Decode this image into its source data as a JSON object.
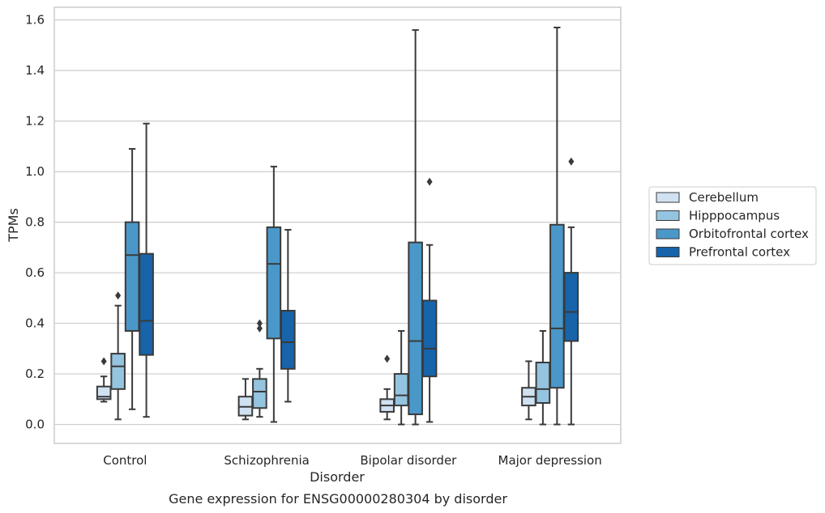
{
  "chart_data": {
    "type": "box",
    "caption": "Gene expression for ENSG00000280304 by disorder",
    "xlabel": "Disorder",
    "ylabel": "TPMs",
    "ylim": [
      -0.075,
      1.65
    ],
    "yticks": [
      "0.0",
      "0.2",
      "0.4",
      "0.6",
      "0.8",
      "1.0",
      "1.2",
      "1.4",
      "1.6"
    ],
    "grid": "horizontal",
    "legend_position": "right",
    "categories": [
      "Control",
      "Schizophrenia",
      "Bipolar disorder",
      "Major depression"
    ],
    "series": [
      {
        "name": "Cerebellum",
        "color": "#d0e1f2",
        "boxes": [
          {
            "whisker_low": 0.09,
            "q1": 0.1,
            "median": 0.11,
            "q3": 0.15,
            "whisker_high": 0.19,
            "outliers": [
              0.25
            ]
          },
          {
            "whisker_low": 0.02,
            "q1": 0.035,
            "median": 0.07,
            "q3": 0.11,
            "whisker_high": 0.18,
            "outliers": []
          },
          {
            "whisker_low": 0.02,
            "q1": 0.05,
            "median": 0.075,
            "q3": 0.1,
            "whisker_high": 0.14,
            "outliers": [
              0.26
            ]
          },
          {
            "whisker_low": 0.02,
            "q1": 0.075,
            "median": 0.11,
            "q3": 0.145,
            "whisker_high": 0.25,
            "outliers": []
          }
        ]
      },
      {
        "name": "Hipppocampus",
        "color": "#94c4df",
        "boxes": [
          {
            "whisker_low": 0.02,
            "q1": 0.14,
            "median": 0.23,
            "q3": 0.28,
            "whisker_high": 0.47,
            "outliers": [
              0.51
            ]
          },
          {
            "whisker_low": 0.03,
            "q1": 0.065,
            "median": 0.13,
            "q3": 0.18,
            "whisker_high": 0.22,
            "outliers": [
              0.38,
              0.4
            ]
          },
          {
            "whisker_low": 0.0,
            "q1": 0.075,
            "median": 0.115,
            "q3": 0.2,
            "whisker_high": 0.37,
            "outliers": []
          },
          {
            "whisker_low": 0.0,
            "q1": 0.085,
            "median": 0.14,
            "q3": 0.245,
            "whisker_high": 0.37,
            "outliers": []
          }
        ]
      },
      {
        "name": "Orbitofrontal cortex",
        "color": "#4a98c9",
        "boxes": [
          {
            "whisker_low": 0.06,
            "q1": 0.37,
            "median": 0.67,
            "q3": 0.8,
            "whisker_high": 1.09,
            "outliers": []
          },
          {
            "whisker_low": 0.01,
            "q1": 0.34,
            "median": 0.635,
            "q3": 0.78,
            "whisker_high": 1.02,
            "outliers": []
          },
          {
            "whisker_low": 0.0,
            "q1": 0.04,
            "median": 0.33,
            "q3": 0.72,
            "whisker_high": 1.56,
            "outliers": []
          },
          {
            "whisker_low": 0.0,
            "q1": 0.145,
            "median": 0.38,
            "q3": 0.79,
            "whisker_high": 1.57,
            "outliers": []
          }
        ]
      },
      {
        "name": "Prefrontal cortex",
        "color": "#1764ab",
        "boxes": [
          {
            "whisker_low": 0.03,
            "q1": 0.275,
            "median": 0.41,
            "q3": 0.675,
            "whisker_high": 1.19,
            "outliers": []
          },
          {
            "whisker_low": 0.09,
            "q1": 0.22,
            "median": 0.325,
            "q3": 0.45,
            "whisker_high": 0.77,
            "outliers": []
          },
          {
            "whisker_low": 0.01,
            "q1": 0.19,
            "median": 0.3,
            "q3": 0.49,
            "whisker_high": 0.71,
            "outliers": [
              0.96
            ]
          },
          {
            "whisker_low": 0.0,
            "q1": 0.33,
            "median": 0.445,
            "q3": 0.6,
            "whisker_high": 0.78,
            "outliers": [
              1.04
            ]
          }
        ]
      }
    ]
  }
}
